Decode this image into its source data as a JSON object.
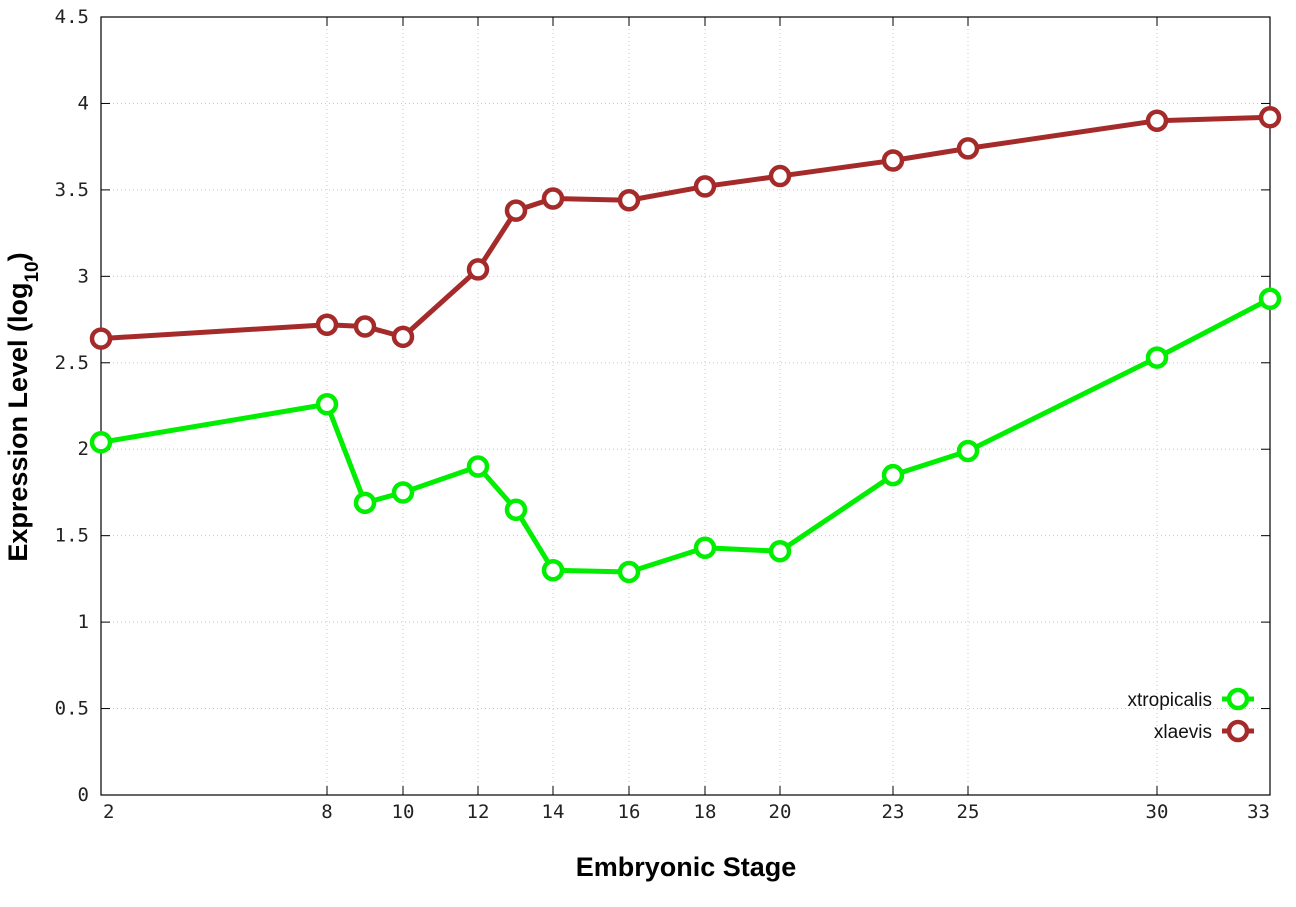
{
  "chart_data": {
    "type": "line",
    "xlabel": "Embryonic Stage",
    "ylabel": {
      "main": "Expression Level (log",
      "sub": "10",
      "close": ")"
    },
    "x_tick_labels": [
      "2",
      "8",
      "10",
      "12",
      "14",
      "16",
      "18",
      "20",
      "23",
      "25",
      "30",
      "33"
    ],
    "y_ticks": [
      0,
      0.5,
      1,
      1.5,
      2,
      2.5,
      3,
      3.5,
      4,
      4.5
    ],
    "y_tick_labels": [
      "0",
      "0.5",
      "1",
      "1.5",
      "2",
      "2.5",
      "3",
      "3.5",
      "4",
      "4.5"
    ],
    "ylim": [
      0,
      4.5
    ],
    "grid": true,
    "legend_position": "bottom-right",
    "series": [
      {
        "name": "xtropicalis",
        "color": "#00ee00",
        "marker": "open-circle",
        "x": [
          2,
          8,
          9,
          10,
          12,
          13,
          14,
          16,
          18,
          20,
          23,
          25,
          30,
          33
        ],
        "values": [
          2.04,
          2.26,
          1.69,
          1.75,
          1.9,
          1.65,
          1.3,
          1.29,
          1.43,
          1.41,
          1.85,
          1.99,
          2.53,
          2.87
        ]
      },
      {
        "name": "xlaevis",
        "color": "#a52a2a",
        "marker": "open-circle",
        "x": [
          2,
          8,
          9,
          10,
          12,
          13,
          14,
          16,
          18,
          20,
          23,
          25,
          30,
          33
        ],
        "values": [
          2.64,
          2.72,
          2.71,
          2.65,
          3.04,
          3.38,
          3.45,
          3.44,
          3.52,
          3.58,
          3.67,
          3.74,
          3.9,
          3.92
        ]
      }
    ]
  }
}
